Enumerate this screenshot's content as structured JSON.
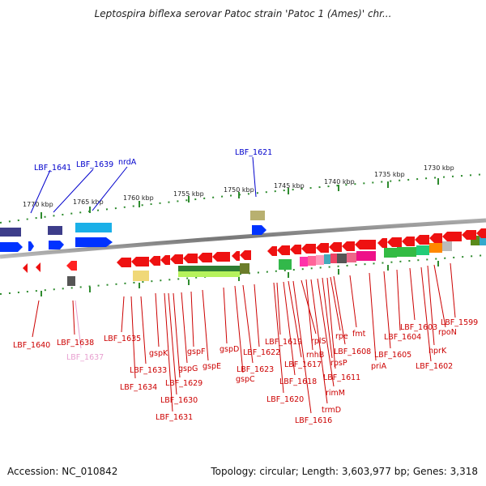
{
  "title": "Leptospira biflexa serovar Patoc strain 'Patoc 1 (Ames)' chr...",
  "footer": {
    "accession": "Accession: NC_010842",
    "topology": "Topology: circular; Length: 3,603,977 bp; Genes: 3,318"
  },
  "ticks": [
    "1770 kbp",
    "1765 kbp",
    "1760 kbp",
    "1755 kbp",
    "1750 kbp",
    "1745 kbp",
    "1740 kbp",
    "1735 kbp",
    "1730 kbp"
  ],
  "top_labels": [
    "LBF_1641",
    "LBF_1639",
    "nrdA",
    "LBF_1621"
  ],
  "bottom_labels": [
    "LBF_1640",
    "LBF_1638",
    "LBF_1637",
    "LBF_1635",
    "LBF_1634",
    "LBF_1633",
    "gspK",
    "LBF_1631",
    "LBF_1630",
    "LBF_1629",
    "gspG",
    "gspF",
    "gspE",
    "gspD",
    "gspC",
    "LBF_1623",
    "LBF_1622",
    "LBF_1620",
    "LBF_1619",
    "LBF_1618",
    "LBF_1617",
    "LBF_1616",
    "rplS",
    "rnhB",
    "trmD",
    "rimM",
    "rpsP",
    "LBF_1611",
    "rpe",
    "LBF_1608",
    "fmt",
    "priA",
    "LBF_1605",
    "LBF_1604",
    "LBF_1603",
    "rpoN",
    "hprK",
    "LBF_1602",
    "LBF_1599"
  ],
  "colors": {
    "top_label": "#0000cc",
    "bottom_label": "#cc0000",
    "faded_label": "#e8a0d0",
    "tick": "#2e8b2e",
    "backbone": "#888888"
  }
}
